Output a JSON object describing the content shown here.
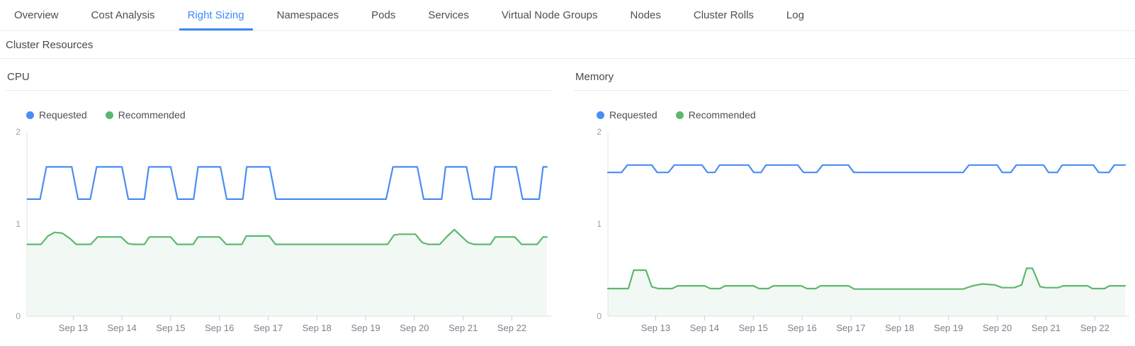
{
  "tabs": [
    {
      "label": "Overview",
      "active": false
    },
    {
      "label": "Cost Analysis",
      "active": false
    },
    {
      "label": "Right Sizing",
      "active": true
    },
    {
      "label": "Namespaces",
      "active": false
    },
    {
      "label": "Pods",
      "active": false
    },
    {
      "label": "Services",
      "active": false
    },
    {
      "label": "Virtual Node Groups",
      "active": false
    },
    {
      "label": "Nodes",
      "active": false
    },
    {
      "label": "Cluster Rolls",
      "active": false
    },
    {
      "label": "Log",
      "active": false
    }
  ],
  "active_tab": "Right Sizing",
  "section": {
    "title": "Cluster Resources"
  },
  "colors": {
    "accent_blue": "#3d8af7",
    "series_requested": "#4a8df5",
    "series_recommended": "#5cb86f",
    "recommended_fill": "rgba(92,184,111,0.08)",
    "axis": "#e3e5e8",
    "tick": "#c8ccd0"
  },
  "chart_data": [
    {
      "type": "line",
      "name": "cpu",
      "title": "CPU",
      "ylim": [
        0,
        2
      ],
      "yticks": [
        0,
        1,
        2
      ],
      "xlim": [
        12.05,
        22.72
      ],
      "x_unit": "day of September",
      "grid": false,
      "legend_position": "top-left",
      "xticks": [
        {
          "v": 13,
          "label": "Sep 13"
        },
        {
          "v": 14,
          "label": "Sep 14"
        },
        {
          "v": 15,
          "label": "Sep 15"
        },
        {
          "v": 16,
          "label": "Sep 16"
        },
        {
          "v": 17,
          "label": "Sep 17"
        },
        {
          "v": 18,
          "label": "Sep 18"
        },
        {
          "v": 19,
          "label": "Sep 19"
        },
        {
          "v": 20,
          "label": "Sep 20"
        },
        {
          "v": 21,
          "label": "Sep 21"
        },
        {
          "v": 22,
          "label": "Sep 22"
        }
      ],
      "series": [
        {
          "name": "Requested",
          "color": "#4a8df5",
          "area": false,
          "points": [
            [
              12.06,
              1.27
            ],
            [
              12.32,
              1.27
            ],
            [
              12.45,
              1.62
            ],
            [
              12.97,
              1.62
            ],
            [
              13.1,
              1.27
            ],
            [
              13.35,
              1.27
            ],
            [
              13.48,
              1.62
            ],
            [
              14.0,
              1.62
            ],
            [
              14.13,
              1.27
            ],
            [
              14.46,
              1.27
            ],
            [
              14.55,
              1.62
            ],
            [
              15.0,
              1.62
            ],
            [
              15.14,
              1.27
            ],
            [
              15.47,
              1.27
            ],
            [
              15.56,
              1.62
            ],
            [
              16.02,
              1.62
            ],
            [
              16.15,
              1.27
            ],
            [
              16.48,
              1.27
            ],
            [
              16.56,
              1.62
            ],
            [
              17.03,
              1.62
            ],
            [
              17.16,
              1.27
            ],
            [
              19.42,
              1.27
            ],
            [
              19.56,
              1.62
            ],
            [
              20.06,
              1.62
            ],
            [
              20.19,
              1.27
            ],
            [
              20.56,
              1.27
            ],
            [
              20.64,
              1.62
            ],
            [
              21.07,
              1.62
            ],
            [
              21.2,
              1.27
            ],
            [
              21.57,
              1.27
            ],
            [
              21.65,
              1.62
            ],
            [
              22.09,
              1.62
            ],
            [
              22.22,
              1.27
            ],
            [
              22.56,
              1.27
            ],
            [
              22.64,
              1.62
            ],
            [
              22.72,
              1.62
            ]
          ]
        },
        {
          "name": "Recommended",
          "color": "#5cb86f",
          "area": true,
          "area_fill": "rgba(92,184,111,0.08)",
          "points": [
            [
              12.06,
              0.78
            ],
            [
              12.34,
              0.78
            ],
            [
              12.48,
              0.87
            ],
            [
              12.62,
              0.91
            ],
            [
              12.78,
              0.9
            ],
            [
              12.94,
              0.84
            ],
            [
              13.06,
              0.78
            ],
            [
              13.36,
              0.78
            ],
            [
              13.5,
              0.86
            ],
            [
              13.98,
              0.86
            ],
            [
              14.12,
              0.79
            ],
            [
              14.22,
              0.78
            ],
            [
              14.46,
              0.78
            ],
            [
              14.56,
              0.86
            ],
            [
              15.0,
              0.86
            ],
            [
              15.13,
              0.78
            ],
            [
              15.46,
              0.78
            ],
            [
              15.56,
              0.86
            ],
            [
              16.0,
              0.86
            ],
            [
              16.14,
              0.78
            ],
            [
              16.46,
              0.78
            ],
            [
              16.55,
              0.87
            ],
            [
              17.02,
              0.87
            ],
            [
              17.15,
              0.78
            ],
            [
              19.45,
              0.78
            ],
            [
              19.58,
              0.88
            ],
            [
              19.7,
              0.89
            ],
            [
              20.02,
              0.89
            ],
            [
              20.16,
              0.8
            ],
            [
              20.28,
              0.78
            ],
            [
              20.52,
              0.78
            ],
            [
              20.66,
              0.86
            ],
            [
              20.82,
              0.94
            ],
            [
              20.96,
              0.87
            ],
            [
              21.1,
              0.8
            ],
            [
              21.22,
              0.78
            ],
            [
              21.56,
              0.78
            ],
            [
              21.66,
              0.86
            ],
            [
              22.06,
              0.86
            ],
            [
              22.2,
              0.78
            ],
            [
              22.52,
              0.78
            ],
            [
              22.64,
              0.86
            ],
            [
              22.72,
              0.86
            ]
          ]
        }
      ]
    },
    {
      "type": "line",
      "name": "memory",
      "title": "Memory",
      "ylim": [
        0,
        2
      ],
      "yticks": [
        0,
        1,
        2
      ],
      "xlim": [
        12.02,
        22.62
      ],
      "x_unit": "day of September",
      "grid": false,
      "legend_position": "top-left",
      "xticks": [
        {
          "v": 13,
          "label": "Sep 13"
        },
        {
          "v": 14,
          "label": "Sep 14"
        },
        {
          "v": 15,
          "label": "Sep 15"
        },
        {
          "v": 16,
          "label": "Sep 16"
        },
        {
          "v": 17,
          "label": "Sep 17"
        },
        {
          "v": 18,
          "label": "Sep 18"
        },
        {
          "v": 19,
          "label": "Sep 19"
        },
        {
          "v": 20,
          "label": "Sep 20"
        },
        {
          "v": 21,
          "label": "Sep 21"
        },
        {
          "v": 22,
          "label": "Sep 22"
        }
      ],
      "series": [
        {
          "name": "Requested",
          "color": "#4a8df5",
          "area": false,
          "points": [
            [
              12.02,
              1.56
            ],
            [
              12.3,
              1.56
            ],
            [
              12.42,
              1.64
            ],
            [
              12.92,
              1.64
            ],
            [
              13.03,
              1.56
            ],
            [
              13.26,
              1.56
            ],
            [
              13.38,
              1.64
            ],
            [
              13.95,
              1.64
            ],
            [
              14.06,
              1.56
            ],
            [
              14.21,
              1.56
            ],
            [
              14.31,
              1.64
            ],
            [
              14.9,
              1.64
            ],
            [
              15.01,
              1.56
            ],
            [
              15.16,
              1.56
            ],
            [
              15.26,
              1.64
            ],
            [
              15.91,
              1.64
            ],
            [
              16.03,
              1.56
            ],
            [
              16.3,
              1.56
            ],
            [
              16.42,
              1.64
            ],
            [
              16.95,
              1.64
            ],
            [
              17.06,
              1.56
            ],
            [
              19.3,
              1.56
            ],
            [
              19.42,
              1.64
            ],
            [
              20.0,
              1.64
            ],
            [
              20.1,
              1.56
            ],
            [
              20.28,
              1.56
            ],
            [
              20.39,
              1.64
            ],
            [
              20.95,
              1.64
            ],
            [
              21.05,
              1.56
            ],
            [
              21.23,
              1.56
            ],
            [
              21.33,
              1.64
            ],
            [
              21.97,
              1.64
            ],
            [
              22.08,
              1.56
            ],
            [
              22.29,
              1.56
            ],
            [
              22.4,
              1.64
            ],
            [
              22.62,
              1.64
            ]
          ]
        },
        {
          "name": "Recommended",
          "color": "#5cb86f",
          "area": true,
          "area_fill": "rgba(92,184,111,0.08)",
          "points": [
            [
              12.02,
              0.3
            ],
            [
              12.44,
              0.3
            ],
            [
              12.55,
              0.5
            ],
            [
              12.8,
              0.5
            ],
            [
              12.92,
              0.32
            ],
            [
              13.05,
              0.3
            ],
            [
              13.34,
              0.3
            ],
            [
              13.45,
              0.33
            ],
            [
              14.0,
              0.33
            ],
            [
              14.12,
              0.3
            ],
            [
              14.32,
              0.3
            ],
            [
              14.42,
              0.33
            ],
            [
              15.0,
              0.33
            ],
            [
              15.12,
              0.3
            ],
            [
              15.31,
              0.3
            ],
            [
              15.41,
              0.33
            ],
            [
              15.98,
              0.33
            ],
            [
              16.1,
              0.3
            ],
            [
              16.28,
              0.3
            ],
            [
              16.38,
              0.33
            ],
            [
              16.95,
              0.33
            ],
            [
              17.07,
              0.295
            ],
            [
              19.3,
              0.295
            ],
            [
              19.5,
              0.33
            ],
            [
              19.7,
              0.35
            ],
            [
              19.95,
              0.34
            ],
            [
              20.1,
              0.31
            ],
            [
              20.35,
              0.31
            ],
            [
              20.5,
              0.34
            ],
            [
              20.6,
              0.52
            ],
            [
              20.72,
              0.52
            ],
            [
              20.88,
              0.32
            ],
            [
              21.0,
              0.31
            ],
            [
              21.25,
              0.31
            ],
            [
              21.35,
              0.33
            ],
            [
              21.85,
              0.33
            ],
            [
              21.95,
              0.3
            ],
            [
              22.2,
              0.3
            ],
            [
              22.3,
              0.33
            ],
            [
              22.62,
              0.33
            ]
          ]
        }
      ]
    }
  ]
}
